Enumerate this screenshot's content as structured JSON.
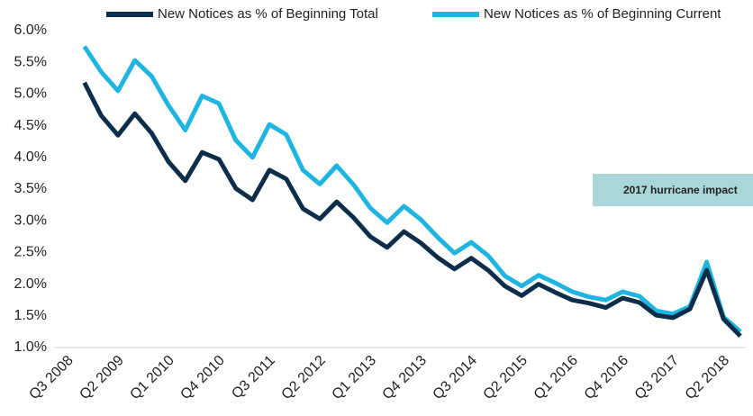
{
  "chart_data": {
    "type": "line",
    "categories": [
      "Q3 2008",
      null,
      null,
      "Q2 2009",
      null,
      null,
      "Q1 2010",
      null,
      null,
      "Q4 2010",
      null,
      null,
      "Q3 2011",
      null,
      null,
      "Q2 2012",
      null,
      null,
      "Q1 2013",
      null,
      null,
      "Q4 2013",
      null,
      null,
      "Q3 2014",
      null,
      null,
      "Q2 2015",
      null,
      null,
      "Q1 2016",
      null,
      null,
      "Q4 2016",
      null,
      null,
      "Q3 2017",
      null,
      null,
      "Q2 2018",
      null
    ],
    "series": [
      {
        "name": "New Notices as % of Beginning Total",
        "color": "#0d2e4a",
        "values": [
          null,
          5.18,
          4.66,
          4.35,
          4.69,
          4.38,
          3.93,
          3.63,
          4.08,
          3.97,
          3.51,
          3.33,
          3.8,
          3.66,
          3.19,
          3.03,
          3.3,
          3.05,
          2.75,
          2.58,
          2.83,
          2.65,
          2.42,
          2.24,
          2.41,
          2.22,
          1.97,
          1.82,
          2.0,
          1.87,
          1.75,
          1.7,
          1.63,
          1.78,
          1.71,
          1.51,
          1.47,
          1.61,
          2.22,
          1.45,
          1.18
        ]
      },
      {
        "name": "New Notices as % of Beginning Current",
        "color": "#1fb5e0",
        "values": [
          null,
          5.75,
          5.35,
          5.05,
          5.53,
          5.28,
          4.82,
          4.43,
          4.97,
          4.85,
          4.27,
          4.0,
          4.52,
          4.36,
          3.8,
          3.58,
          3.87,
          3.57,
          3.2,
          2.97,
          3.23,
          3.02,
          2.74,
          2.49,
          2.66,
          2.45,
          2.13,
          1.97,
          2.14,
          2.02,
          1.88,
          1.8,
          1.75,
          1.88,
          1.81,
          1.58,
          1.53,
          1.65,
          2.35,
          1.48,
          1.25
        ]
      }
    ],
    "ylim": [
      1,
      6
    ],
    "yticks": [
      {
        "value": 1,
        "label": "1.0%"
      },
      {
        "value": 1.5,
        "label": "1.5%"
      },
      {
        "value": 2,
        "label": "2.0%"
      },
      {
        "value": 2.5,
        "label": "2.5%"
      },
      {
        "value": 3,
        "label": "3.0%"
      },
      {
        "value": 3.5,
        "label": "3.5%"
      },
      {
        "value": 4,
        "label": "4.0%"
      },
      {
        "value": 4.5,
        "label": "4.5%"
      },
      {
        "value": 5,
        "label": "5.0%"
      },
      {
        "value": 5.5,
        "label": "5.5%"
      },
      {
        "value": 6,
        "label": "6.0%"
      }
    ],
    "annotation": "2017 hurricane impact",
    "annotation_color": "#a9d6d9",
    "legend": "top"
  }
}
